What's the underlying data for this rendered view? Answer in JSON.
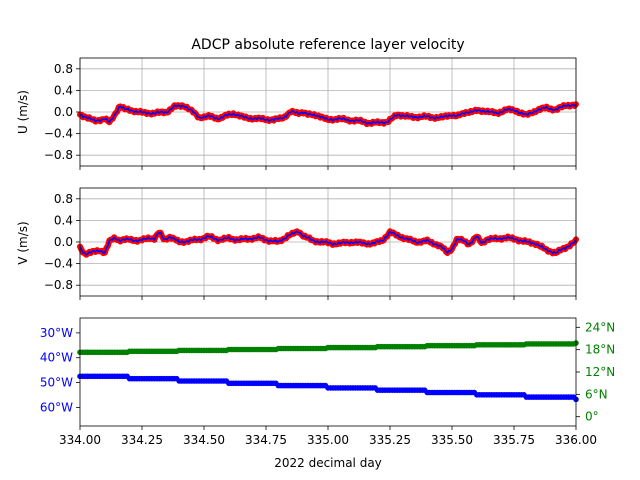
{
  "chart_data": [
    {
      "type": "line",
      "title": "ADCP absolute reference layer velocity",
      "ylabel": "U (m/s)",
      "xlim": [
        334.0,
        336.0
      ],
      "ylim": [
        -1.0,
        1.0
      ],
      "yticks": [
        "0.8",
        "0.4",
        "0.0",
        "−0.4",
        "−0.8"
      ],
      "ytick_values": [
        0.8,
        0.4,
        0.0,
        -0.4,
        -0.8
      ],
      "grid": true,
      "colors": {
        "fill": "#ff0000",
        "line": "#0000ff"
      },
      "keypoints": {
        "x": [
          334.0,
          334.02,
          334.06,
          334.1,
          334.12,
          334.14,
          334.16,
          334.18,
          334.22,
          334.26,
          334.3,
          334.35,
          334.38,
          334.42,
          334.45,
          334.48,
          334.52,
          334.56,
          334.6,
          334.62,
          334.66,
          334.7,
          334.74,
          334.78,
          334.82,
          334.85,
          334.88,
          334.9,
          334.92,
          334.96,
          335.0,
          335.04,
          335.08,
          335.12,
          335.16,
          335.2,
          335.24,
          335.28,
          335.3,
          335.34,
          335.38,
          335.42,
          335.46,
          335.5,
          335.52,
          335.56,
          335.6,
          335.64,
          335.68,
          335.72,
          335.76,
          335.8,
          335.84,
          335.88,
          335.92,
          335.96,
          336.0
        ],
        "y": [
          -0.05,
          -0.08,
          -0.17,
          -0.12,
          -0.2,
          -0.05,
          0.12,
          0.05,
          0.02,
          -0.02,
          -0.02,
          0.0,
          0.1,
          0.12,
          0.02,
          -0.1,
          -0.08,
          -0.12,
          -0.05,
          -0.03,
          -0.1,
          -0.12,
          -0.13,
          -0.15,
          -0.1,
          0.0,
          -0.02,
          0.0,
          -0.05,
          -0.06,
          -0.15,
          -0.12,
          -0.15,
          -0.16,
          -0.2,
          -0.2,
          -0.18,
          -0.05,
          -0.06,
          -0.1,
          -0.08,
          -0.1,
          -0.1,
          -0.05,
          -0.08,
          0.0,
          0.02,
          0.02,
          -0.03,
          0.05,
          0.02,
          -0.06,
          0.03,
          0.08,
          0.04,
          0.13,
          0.12
        ]
      }
    },
    {
      "type": "line",
      "ylabel": "V (m/s)",
      "xlim": [
        334.0,
        336.0
      ],
      "ylim": [
        -1.0,
        1.0
      ],
      "yticks": [
        "0.8",
        "0.4",
        "0.0",
        "−0.4",
        "−0.8"
      ],
      "ytick_values": [
        0.8,
        0.4,
        0.0,
        -0.4,
        -0.8
      ],
      "grid": true,
      "colors": {
        "fill": "#ff0000",
        "line": "#0000ff"
      },
      "keypoints": {
        "x": [
          334.0,
          334.02,
          334.04,
          334.08,
          334.1,
          334.12,
          334.14,
          334.16,
          334.2,
          334.24,
          334.28,
          334.3,
          334.32,
          334.34,
          334.36,
          334.4,
          334.44,
          334.48,
          334.52,
          334.56,
          334.6,
          334.64,
          334.68,
          334.72,
          334.76,
          334.8,
          334.84,
          334.86,
          334.88,
          334.9,
          334.94,
          334.98,
          335.02,
          335.06,
          335.1,
          335.14,
          335.18,
          335.22,
          335.25,
          335.28,
          335.32,
          335.36,
          335.4,
          335.44,
          335.46,
          335.48,
          335.5,
          335.52,
          335.55,
          335.57,
          335.6,
          335.62,
          335.64,
          335.68,
          335.72,
          335.76,
          335.8,
          335.84,
          335.88,
          335.92,
          335.96,
          336.0
        ],
        "y": [
          -0.1,
          -0.22,
          -0.2,
          -0.15,
          -0.2,
          0.02,
          0.08,
          0.03,
          0.05,
          0.02,
          0.08,
          0.06,
          0.18,
          0.04,
          0.1,
          0.0,
          0.02,
          0.05,
          0.1,
          0.04,
          0.07,
          0.04,
          0.06,
          0.08,
          0.03,
          0.0,
          0.12,
          0.15,
          0.2,
          0.12,
          0.02,
          0.0,
          -0.03,
          -0.02,
          0.0,
          -0.02,
          -0.03,
          0.03,
          0.18,
          0.12,
          0.05,
          0.0,
          0.02,
          -0.05,
          -0.1,
          -0.2,
          -0.12,
          0.05,
          0.02,
          -0.04,
          0.1,
          -0.02,
          0.05,
          0.06,
          0.08,
          0.05,
          0.0,
          -0.03,
          -0.15,
          -0.2,
          -0.1,
          0.02
        ]
      }
    },
    {
      "type": "scatter",
      "xlabel": "2022 decimal day",
      "xlim": [
        334.0,
        336.0
      ],
      "xticks": [
        "334.00",
        "334.25",
        "334.50",
        "334.75",
        "335.00",
        "335.25",
        "335.50",
        "335.75",
        "336.00"
      ],
      "xtick_values": [
        334.0,
        334.25,
        334.5,
        334.75,
        335.0,
        335.25,
        335.5,
        335.75,
        336.0
      ],
      "series": [
        {
          "axis": "left",
          "color": "#0000ff",
          "ylim": [
            -67.5,
            -24.0
          ],
          "yticks": [
            "30°W",
            "40°W",
            "50°W",
            "60°W"
          ],
          "ytick_values": [
            -30,
            -40,
            -50,
            -60
          ],
          "x": [
            334.0,
            336.0
          ],
          "y": [
            -47.5,
            -56.8
          ]
        },
        {
          "axis": "right",
          "color": "#008000",
          "ylim": [
            -2.5,
            26.5
          ],
          "yticks": [
            "24°N",
            "18°N",
            "12°N",
            "6°N",
            "0°"
          ],
          "ytick_values": [
            24,
            18,
            12,
            6,
            0
          ],
          "x": [
            334.0,
            336.0
          ],
          "y": [
            17.3,
            19.8
          ]
        }
      ]
    }
  ]
}
